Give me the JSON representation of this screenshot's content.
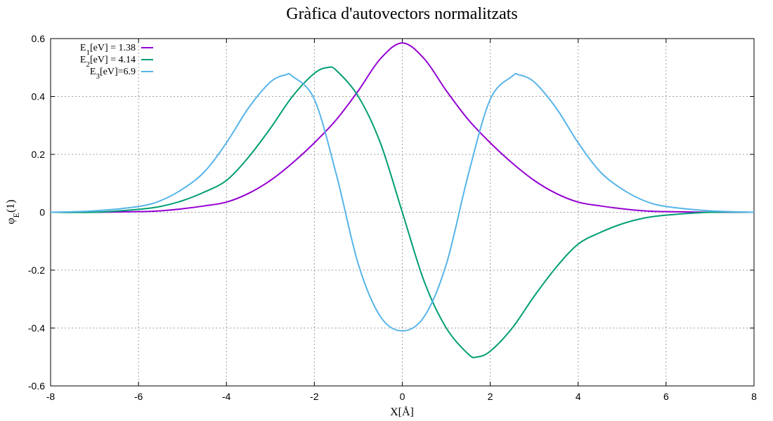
{
  "chart_data": {
    "type": "line",
    "title": "Gràfica d'autovectors normalitzats",
    "xlabel": "X[Å]",
    "ylabel": {
      "main": "φ",
      "sub": "E",
      "suffix": "(1)"
    },
    "xlim": [
      -8,
      8
    ],
    "ylim": [
      -0.6,
      0.6
    ],
    "xticks": [
      -8,
      -6,
      -4,
      -2,
      0,
      2,
      4,
      6,
      8
    ],
    "yticks": [
      -0.6,
      -0.4,
      -0.2,
      0,
      0.2,
      0.4,
      0.6
    ],
    "grid": true,
    "legend": "top-left",
    "series": [
      {
        "legend": {
          "main": "E",
          "sub": "1",
          "rest": "[eV] = 1.38"
        },
        "color": "#9400d3",
        "x": [
          -8,
          -7,
          -6,
          -5.5,
          -5,
          -4.5,
          -4,
          -3.5,
          -3,
          -2.5,
          -2,
          -1.5,
          -1,
          -0.5,
          0,
          0.5,
          1,
          1.5,
          2,
          2.5,
          3,
          3.5,
          4,
          4.5,
          5,
          5.5,
          6,
          7,
          8
        ],
        "y": [
          0,
          0,
          0.002,
          0.005,
          0.012,
          0.022,
          0.035,
          0.065,
          0.11,
          0.17,
          0.24,
          0.32,
          0.42,
          0.53,
          0.585,
          0.53,
          0.42,
          0.32,
          0.24,
          0.17,
          0.11,
          0.065,
          0.035,
          0.022,
          0.012,
          0.005,
          0.002,
          0,
          0
        ]
      },
      {
        "legend": {
          "main": "E",
          "sub": "2",
          "rest": "[eV] = 4.14"
        },
        "color": "#009e73",
        "x": [
          -8,
          -7,
          -6,
          -5.5,
          -5,
          -4.5,
          -4,
          -3.5,
          -3,
          -2.5,
          -2,
          -1.7,
          -1.5,
          -1,
          -0.5,
          0,
          0.5,
          1,
          1.5,
          1.7,
          2,
          2.5,
          3,
          3.5,
          4,
          4.5,
          5,
          5.5,
          6,
          7,
          8
        ],
        "y": [
          0,
          0,
          0.01,
          0.02,
          0.04,
          0.07,
          0.11,
          0.19,
          0.29,
          0.4,
          0.48,
          0.5,
          0.49,
          0.4,
          0.24,
          0,
          -0.24,
          -0.4,
          -0.49,
          -0.5,
          -0.48,
          -0.4,
          -0.29,
          -0.19,
          -0.11,
          -0.07,
          -0.04,
          -0.02,
          -0.01,
          0,
          0
        ]
      },
      {
        "legend": {
          "main": "E",
          "sub": "3",
          "rest": "[eV]=6.9"
        },
        "color": "#56b4e9",
        "x": [
          -8,
          -7,
          -6,
          -5.5,
          -5,
          -4.5,
          -4,
          -3.5,
          -3,
          -2.65,
          -2.5,
          -2,
          -1.5,
          -1,
          -0.5,
          0,
          0.5,
          1,
          1.5,
          2,
          2.5,
          2.65,
          3,
          3.5,
          4,
          4.5,
          5,
          5.5,
          6,
          7,
          8
        ],
        "y": [
          0,
          0.005,
          0.02,
          0.04,
          0.08,
          0.14,
          0.24,
          0.36,
          0.45,
          0.475,
          0.47,
          0.39,
          0.13,
          -0.18,
          -0.36,
          -0.41,
          -0.36,
          -0.18,
          0.13,
          0.39,
          0.47,
          0.475,
          0.45,
          0.36,
          0.24,
          0.14,
          0.08,
          0.04,
          0.02,
          0.005,
          0
        ]
      }
    ]
  }
}
